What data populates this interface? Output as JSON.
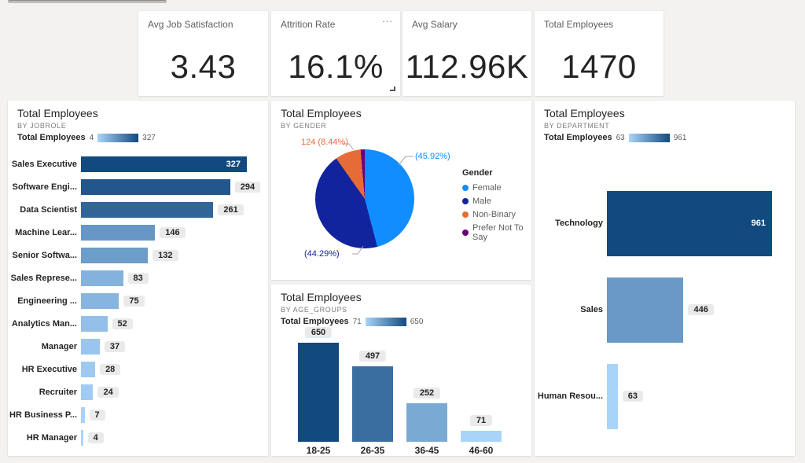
{
  "canvas": {
    "background": "#F3F2F1",
    "card_background": "#FFFFFF"
  },
  "kpi_cards": [
    {
      "title": "Avg Job Satisfaction",
      "value": "3.43"
    },
    {
      "title": "Attrition Rate",
      "value": "16.1%",
      "more_options": "..."
    },
    {
      "title": "Avg Salary",
      "value": "112.96K"
    },
    {
      "title": "Total Employees",
      "value": "1470"
    }
  ],
  "chart_data": [
    {
      "key": "jobrole",
      "type": "bar",
      "orientation": "horizontal",
      "title": "Total Employees",
      "subtitle": "BY JOBROLE",
      "legend": {
        "label": "Total Employees",
        "min": 4,
        "max": 327
      },
      "categories": [
        "Sales Executive",
        "Software Engi...",
        "Data Scientist",
        "Machine Lear...",
        "Senior Softwa...",
        "Sales Represe...",
        "Engineering ...",
        "Analytics Man...",
        "Manager",
        "HR Executive",
        "Recruiter",
        "HR Business P...",
        "HR Manager"
      ],
      "values": [
        327,
        294,
        261,
        146,
        132,
        83,
        75,
        52,
        37,
        28,
        24,
        7,
        4
      ],
      "color_min": "#A9D4FA",
      "color_max": "#12497F",
      "grid": false
    },
    {
      "key": "gender",
      "type": "pie",
      "title": "Total Employees",
      "subtitle": "BY GENDER",
      "legend_title": "Gender",
      "legend_position": "right",
      "slices": [
        {
          "label": "Female",
          "pct": 45.92,
          "color": "#118DFF",
          "callout": "(45.92%)"
        },
        {
          "label": "Male",
          "pct": 44.29,
          "color": "#12239E",
          "callout": "(44.29%)"
        },
        {
          "label": "Non-Binary",
          "pct": 8.44,
          "count": 124,
          "color": "#E66C37",
          "callout": "124 (8.44%)"
        },
        {
          "label": "Prefer Not To Say",
          "pct": 1.35,
          "color": "#6B007B",
          "callout": ""
        }
      ]
    },
    {
      "key": "age_groups",
      "type": "bar",
      "orientation": "vertical",
      "title": "Total Employees",
      "subtitle": "BY AGE_GROUPS",
      "legend": {
        "label": "Total Employees",
        "min": 71,
        "max": 650
      },
      "categories": [
        "18-25",
        "26-35",
        "36-45",
        "46-60"
      ],
      "values": [
        650,
        497,
        252,
        71
      ],
      "color_min": "#A9D4FA",
      "color_max": "#12497F",
      "grid": false
    },
    {
      "key": "department",
      "type": "bar",
      "orientation": "horizontal",
      "title": "Total Employees",
      "subtitle": "BY DEPARTMENT",
      "legend": {
        "label": "Total Employees",
        "min": 63,
        "max": 961
      },
      "categories": [
        "Technology",
        "Sales",
        "Human Resou..."
      ],
      "values": [
        961,
        446,
        63
      ],
      "color_min": "#A9D4FA",
      "color_max": "#12497F",
      "grid": false
    }
  ]
}
